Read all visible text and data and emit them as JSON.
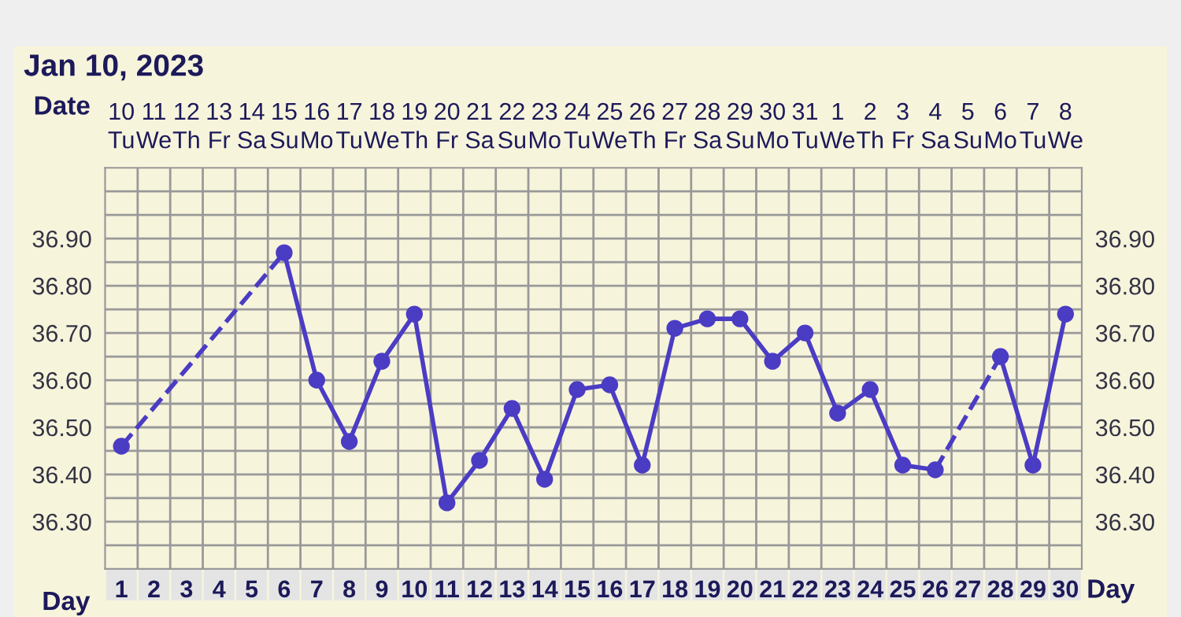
{
  "chart_data": {
    "type": "line",
    "title": "Jan 10, 2023",
    "xlabel": "Day",
    "categories": [
      "1",
      "2",
      "3",
      "4",
      "5",
      "6",
      "7",
      "8",
      "9",
      "10",
      "11",
      "12",
      "13",
      "14",
      "15",
      "16",
      "17",
      "18",
      "19",
      "20",
      "21",
      "22",
      "23",
      "24",
      "25",
      "26",
      "27",
      "28",
      "29",
      "30"
    ],
    "series": [
      {
        "color": "#4b3cc4",
        "values": [
          36.46,
          null,
          null,
          null,
          null,
          36.87,
          36.6,
          36.47,
          36.64,
          36.74,
          36.34,
          36.43,
          36.54,
          36.39,
          36.58,
          36.59,
          36.42,
          36.71,
          36.73,
          36.73,
          36.64,
          36.7,
          36.53,
          36.58,
          36.42,
          36.41,
          null,
          36.65,
          36.42,
          36.74
        ]
      }
    ],
    "annotations": [
      "Date",
      "10\nTu",
      "11\nWe",
      "12\nTh",
      "13\nFr",
      "14\nSa",
      "15\nSu",
      "16\nMo",
      "17\nTu",
      "18\nWe",
      "19\nTh",
      "20\nFr",
      "21\nSa",
      "22\nSu",
      "23\nMo",
      "24\nTu",
      "25\nWe",
      "26\nTh",
      "27\nFr",
      "28\nSa",
      "29\nSu",
      "30\nMo",
      "31\nTu",
      "1\nWe",
      "2\nTh",
      "3\nFr",
      "4\nSa",
      "5\nSu",
      "6\nMo",
      "7\nTu",
      "8\nWe"
    ],
    "ylim": [
      36.2,
      37.05
    ],
    "yticks": [
      {
        "value": 36.3,
        "label": "36.30"
      },
      {
        "value": 36.4,
        "label": "36.40"
      },
      {
        "value": 36.5,
        "label": "36.50"
      },
      {
        "value": 36.6,
        "label": "36.60"
      },
      {
        "value": 36.7,
        "label": "36.70"
      },
      {
        "value": 36.8,
        "label": "36.80"
      },
      {
        "value": 36.9,
        "label": "36.90"
      }
    ],
    "y2lim": [
      36.2,
      37.05
    ],
    "y2ticks": [
      {
        "value": 36.3,
        "label": "36.30"
      },
      {
        "value": 36.4,
        "label": "36.40"
      },
      {
        "value": 36.5,
        "label": "36.50"
      },
      {
        "value": 36.6,
        "label": "36.60"
      },
      {
        "value": 36.7,
        "label": "36.70"
      },
      {
        "value": 36.8,
        "label": "36.80"
      },
      {
        "value": 36.9,
        "label": "36.90"
      }
    ],
    "grid": true,
    "marker": "circle",
    "line_style": "solid"
  }
}
